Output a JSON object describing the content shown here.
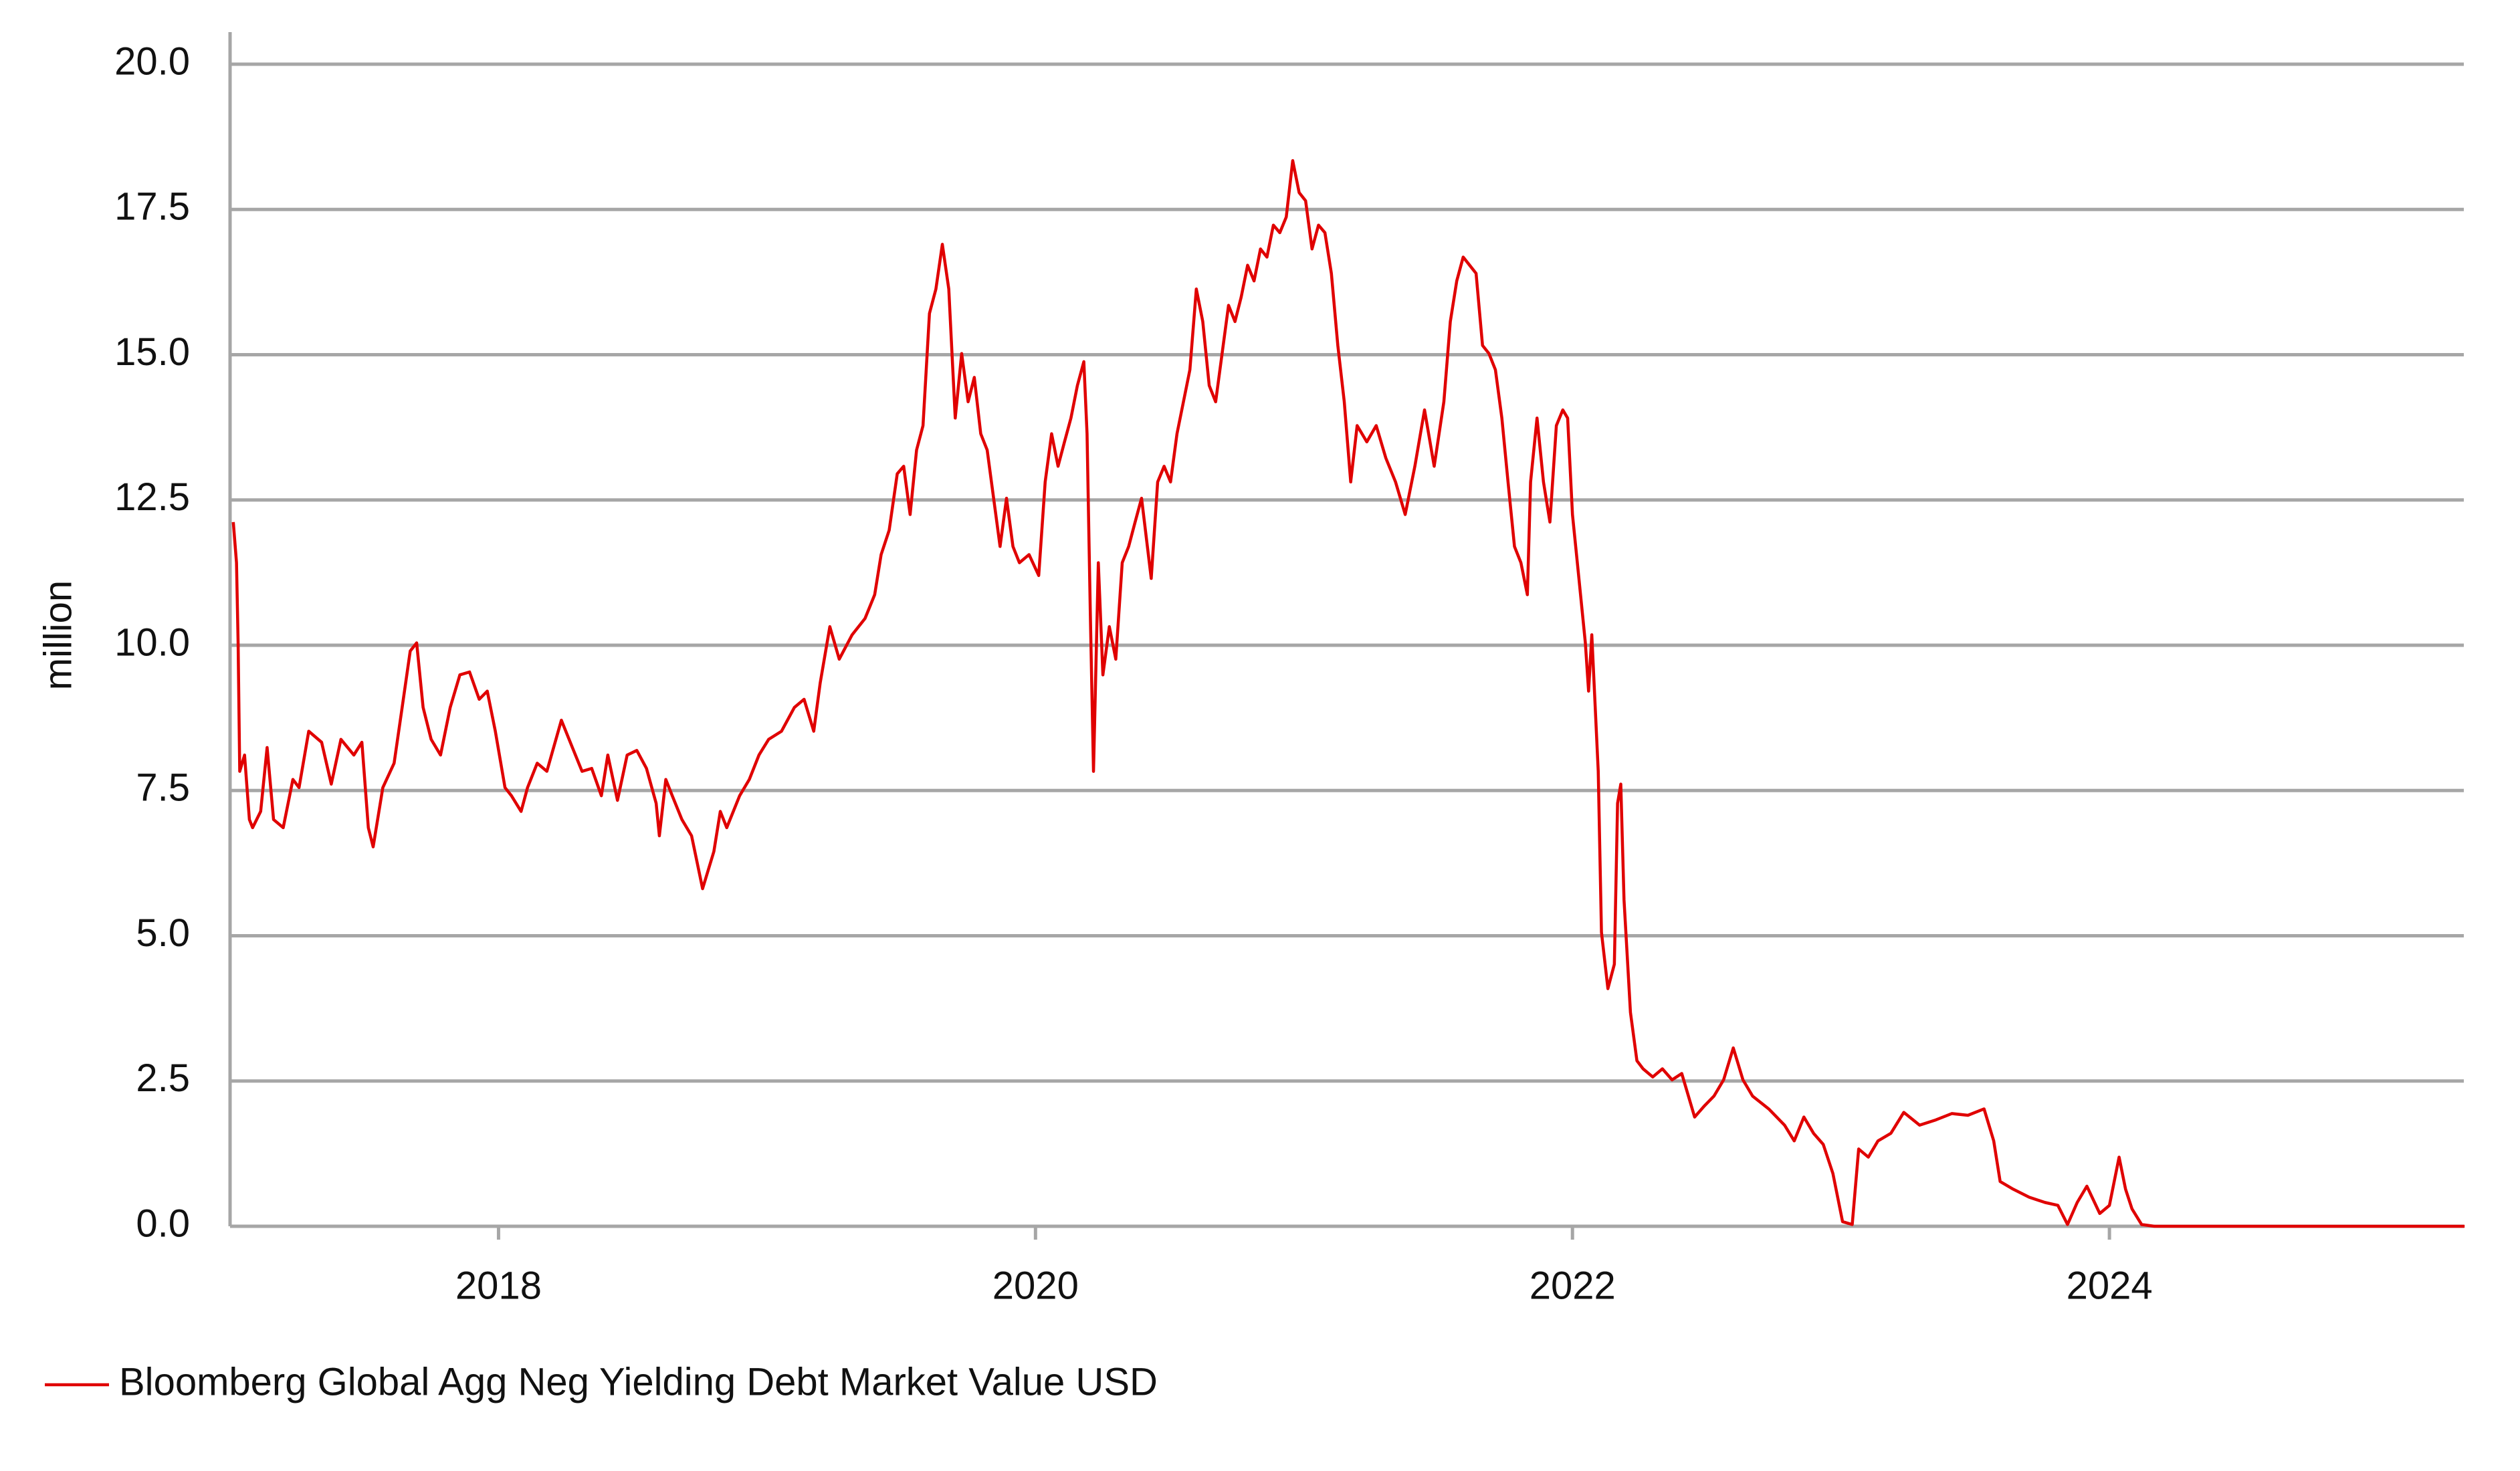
{
  "chart_data": {
    "type": "line",
    "ylabel": "million",
    "x": [
      2017.012,
      2017.024,
      2017.03,
      2017.036,
      2017.054,
      2017.072,
      2017.084,
      2017.114,
      2017.138,
      2017.162,
      2017.198,
      2017.234,
      2017.257,
      2017.293,
      2017.341,
      2017.377,
      2017.413,
      2017.461,
      2017.491,
      2017.515,
      2017.533,
      2017.569,
      2017.611,
      2017.641,
      2017.671,
      2017.695,
      2017.719,
      2017.749,
      2017.784,
      2017.82,
      2017.856,
      2017.892,
      2017.928,
      2017.958,
      2017.988,
      2018.024,
      2018.048,
      2018.084,
      2018.108,
      2018.144,
      2018.18,
      2018.234,
      2018.275,
      2018.311,
      2018.347,
      2018.383,
      2018.407,
      2018.443,
      2018.479,
      2018.515,
      2018.551,
      2018.587,
      2018.599,
      2018.623,
      2018.647,
      2018.683,
      2018.719,
      2018.76,
      2018.802,
      2018.826,
      2018.85,
      2018.898,
      2018.934,
      2018.97,
      2019.006,
      2019.054,
      2019.102,
      2019.138,
      2019.174,
      2019.198,
      2019.234,
      2019.269,
      2019.317,
      2019.365,
      2019.401,
      2019.425,
      2019.455,
      2019.485,
      2019.509,
      2019.533,
      2019.557,
      2019.581,
      2019.605,
      2019.629,
      2019.653,
      2019.677,
      2019.701,
      2019.725,
      2019.749,
      2019.772,
      2019.796,
      2019.82,
      2019.844,
      2019.868,
      2019.892,
      2019.916,
      2019.94,
      2019.976,
      2020.012,
      2020.036,
      2020.06,
      2020.084,
      2020.108,
      2020.132,
      2020.156,
      2020.18,
      2020.192,
      2020.204,
      2020.216,
      2020.234,
      2020.251,
      2020.275,
      2020.299,
      2020.323,
      2020.347,
      2020.371,
      2020.395,
      2020.431,
      2020.455,
      2020.479,
      2020.503,
      2020.527,
      2020.551,
      2020.575,
      2020.599,
      2020.623,
      2020.647,
      2020.671,
      2020.695,
      2020.719,
      2020.743,
      2020.766,
      2020.79,
      2020.814,
      2020.838,
      2020.862,
      2020.886,
      2020.91,
      2020.934,
      2020.958,
      2020.982,
      2021.006,
      2021.03,
      2021.054,
      2021.078,
      2021.102,
      2021.126,
      2021.15,
      2021.174,
      2021.198,
      2021.234,
      2021.269,
      2021.305,
      2021.341,
      2021.377,
      2021.413,
      2021.449,
      2021.485,
      2021.521,
      2021.545,
      2021.569,
      2021.593,
      2021.617,
      2021.641,
      2021.665,
      2021.689,
      2021.713,
      2021.737,
      2021.76,
      2021.784,
      2021.808,
      2021.832,
      2021.844,
      2021.868,
      2021.892,
      2021.916,
      2021.94,
      2021.964,
      2021.982,
      2022.0,
      2022.024,
      2022.048,
      2022.06,
      2022.072,
      2022.096,
      2022.108,
      2022.132,
      2022.156,
      2022.168,
      2022.18,
      2022.192,
      2022.216,
      2022.24,
      2022.263,
      2022.299,
      2022.335,
      2022.371,
      2022.407,
      2022.455,
      2022.491,
      2022.527,
      2022.563,
      2022.599,
      2022.635,
      2022.671,
      2022.731,
      2022.79,
      2022.826,
      2022.862,
      2022.898,
      2022.934,
      2022.97,
      2023.006,
      2023.042,
      2023.066,
      2023.102,
      2023.138,
      2023.186,
      2023.234,
      2023.293,
      2023.353,
      2023.413,
      2023.473,
      2023.533,
      2023.569,
      2023.593,
      2023.641,
      2023.701,
      2023.76,
      2023.808,
      2023.844,
      2023.88,
      2023.916,
      2023.964,
      2024.0,
      2024.036,
      2024.06,
      2024.084,
      2024.12,
      2024.168,
      2025.323
    ],
    "series": [
      {
        "name": "Bloomberg Global Agg Neg Yielding Debt Market Value USD",
        "color": "#e00000",
        "values": [
          12.12,
          11.42,
          10.04,
          7.83,
          8.11,
          7.0,
          6.86,
          7.14,
          8.24,
          7.0,
          6.86,
          7.69,
          7.55,
          8.52,
          8.33,
          7.61,
          8.38,
          8.11,
          8.33,
          6.86,
          6.53,
          7.55,
          7.97,
          8.93,
          9.9,
          10.04,
          8.93,
          8.38,
          8.11,
          8.93,
          9.49,
          9.54,
          9.07,
          9.21,
          8.52,
          7.55,
          7.41,
          7.14,
          7.55,
          7.97,
          7.83,
          8.71,
          8.24,
          7.83,
          7.88,
          7.41,
          8.11,
          7.33,
          8.11,
          8.19,
          7.88,
          7.28,
          6.72,
          7.69,
          7.41,
          7.0,
          6.72,
          5.81,
          6.45,
          7.14,
          6.86,
          7.41,
          7.69,
          8.11,
          8.38,
          8.52,
          8.93,
          9.07,
          8.52,
          9.35,
          10.32,
          9.76,
          10.18,
          10.46,
          10.87,
          11.56,
          11.98,
          12.95,
          13.08,
          12.25,
          13.36,
          13.78,
          15.71,
          16.13,
          16.9,
          16.13,
          13.91,
          15.02,
          14.19,
          14.61,
          13.64,
          13.36,
          12.53,
          11.7,
          12.53,
          11.7,
          11.42,
          11.56,
          11.2,
          12.81,
          13.64,
          13.08,
          13.5,
          13.91,
          14.47,
          14.88,
          13.64,
          10.59,
          7.83,
          11.42,
          9.49,
          10.32,
          9.76,
          11.42,
          11.7,
          12.12,
          12.53,
          11.15,
          12.81,
          13.08,
          12.81,
          13.64,
          14.19,
          14.74,
          16.13,
          15.57,
          14.47,
          14.19,
          15.02,
          15.85,
          15.57,
          15.99,
          16.54,
          16.27,
          16.82,
          16.68,
          17.23,
          17.1,
          17.37,
          18.34,
          17.79,
          17.65,
          16.82,
          17.23,
          17.1,
          16.4,
          15.16,
          14.19,
          12.81,
          13.78,
          13.5,
          13.78,
          13.22,
          12.81,
          12.25,
          13.08,
          14.05,
          13.08,
          14.19,
          15.57,
          16.27,
          16.68,
          16.54,
          16.4,
          15.16,
          15.02,
          14.74,
          13.91,
          12.81,
          11.7,
          11.42,
          10.87,
          12.81,
          13.91,
          12.81,
          12.12,
          13.78,
          14.05,
          13.91,
          12.25,
          11.15,
          10.04,
          9.21,
          10.18,
          7.83,
          5.06,
          4.09,
          4.51,
          7.28,
          7.61,
          5.62,
          3.68,
          2.85,
          2.71,
          2.57,
          2.71,
          2.52,
          2.63,
          1.88,
          2.07,
          2.24,
          2.52,
          3.07,
          2.52,
          2.24,
          2.02,
          1.74,
          1.47,
          1.88,
          1.6,
          1.41,
          0.91,
          0.08,
          0.03,
          1.33,
          1.19,
          1.47,
          1.6,
          1.96,
          1.74,
          1.83,
          1.94,
          1.91,
          2.02,
          1.47,
          0.77,
          0.64,
          0.5,
          0.41,
          0.36,
          0.03,
          0.41,
          0.69,
          0.22,
          0.36,
          1.19,
          0.64,
          0.3,
          0.03,
          0,
          0
        ]
      }
    ],
    "xlim": [
      2017.0,
      2025.32
    ],
    "xticks": [
      2018,
      2020,
      2022,
      2024
    ],
    "ylim": [
      0,
      20
    ],
    "yticks": [
      {
        "value": 0,
        "label": "0.0"
      },
      2.5,
      {
        "value": 5,
        "label": "5.0"
      },
      7.5,
      {
        "value": 10,
        "label": "10.0"
      },
      12.5,
      {
        "value": 15,
        "label": "15.0"
      },
      17.5,
      {
        "value": 20,
        "label": "20.0"
      }
    ],
    "grid": true,
    "legend": "bottom-left"
  }
}
